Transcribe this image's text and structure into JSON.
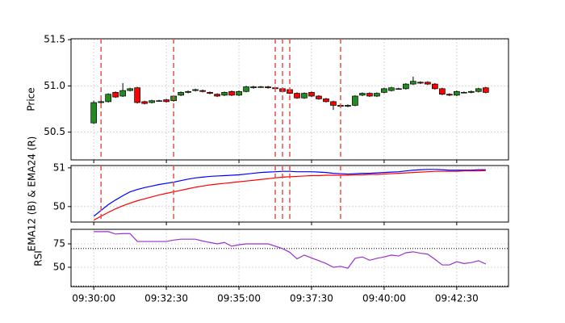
{
  "chart_data": [
    {
      "type": "candlestick",
      "ylabel": "Price",
      "grid": true,
      "up_color": "#228b22",
      "down_color": "#ff0000",
      "signal_color": "#e8504a",
      "xlim": [
        "09:29:13",
        "09:44:17"
      ],
      "ylim": [
        50.2,
        51.51
      ],
      "yticks": [
        50.5,
        {
          "value": 51,
          "label": "51.0"
        },
        51.5
      ],
      "signals": [
        "09:30:15",
        "09:32:45",
        "09:36:15",
        "09:36:30",
        "09:36:45",
        "09:38:30"
      ],
      "x": [
        "09:30:00",
        "09:30:15",
        "09:30:30",
        "09:30:45",
        "09:31:00",
        "09:31:15",
        "09:31:30",
        "09:31:45",
        "09:32:00",
        "09:32:15",
        "09:32:30",
        "09:32:45",
        "09:33:00",
        "09:33:15",
        "09:33:30",
        "09:33:45",
        "09:34:00",
        "09:34:15",
        "09:34:30",
        "09:34:45",
        "09:35:00",
        "09:35:15",
        "09:35:30",
        "09:35:45",
        "09:36:00",
        "09:36:15",
        "09:36:30",
        "09:36:45",
        "09:37:00",
        "09:37:15",
        "09:37:30",
        "09:37:45",
        "09:38:00",
        "09:38:15",
        "09:38:30",
        "09:38:45",
        "09:39:00",
        "09:39:15",
        "09:39:30",
        "09:39:45",
        "09:40:00",
        "09:40:15",
        "09:40:30",
        "09:40:45",
        "09:41:00",
        "09:41:15",
        "09:41:30",
        "09:41:45",
        "09:42:00",
        "09:42:15",
        "09:42:30",
        "09:42:45",
        "09:43:00",
        "09:43:15",
        "09:43:30"
      ],
      "open": [
        50.6,
        50.82,
        50.83,
        50.93,
        50.89,
        50.95,
        50.98,
        50.83,
        50.82,
        50.84,
        50.85,
        50.84,
        50.9,
        50.93,
        50.95,
        50.95,
        50.93,
        50.91,
        50.9,
        50.94,
        50.9,
        50.94,
        50.98,
        50.99,
        50.99,
        50.98,
        50.97,
        50.96,
        50.92,
        50.87,
        50.93,
        50.89,
        50.86,
        50.83,
        50.79,
        50.78,
        50.79,
        50.9,
        50.92,
        50.89,
        50.93,
        50.95,
        50.97,
        50.97,
        51.02,
        51.04,
        51.04,
        51.02,
        50.97,
        50.91,
        50.9,
        50.93,
        50.93,
        50.94,
        50.98
      ],
      "high": [
        50.84,
        50.85,
        50.92,
        50.94,
        51.03,
        50.98,
        50.99,
        50.84,
        50.85,
        50.85,
        50.86,
        50.9,
        50.94,
        50.95,
        50.97,
        50.96,
        50.94,
        50.92,
        50.94,
        50.95,
        50.95,
        51.0,
        51.0,
        51.0,
        51.0,
        50.99,
        50.98,
        50.97,
        50.93,
        50.93,
        50.94,
        50.9,
        50.87,
        50.84,
        50.8,
        50.8,
        50.9,
        50.93,
        50.93,
        50.93,
        50.98,
        50.99,
        50.98,
        51.03,
        51.1,
        51.05,
        51.05,
        51.03,
        50.98,
        50.92,
        50.95,
        50.94,
        50.95,
        50.98,
        50.99
      ],
      "low": [
        50.59,
        50.81,
        50.82,
        50.87,
        50.88,
        50.94,
        50.81,
        50.8,
        50.81,
        50.83,
        50.82,
        50.83,
        50.89,
        50.92,
        50.94,
        50.93,
        50.91,
        50.88,
        50.89,
        50.89,
        50.89,
        50.93,
        50.97,
        50.98,
        50.97,
        50.96,
        50.93,
        50.91,
        50.86,
        50.86,
        50.88,
        50.85,
        50.82,
        50.74,
        50.77,
        50.77,
        50.78,
        50.89,
        50.88,
        50.88,
        50.92,
        50.94,
        50.96,
        50.96,
        51.01,
        51.02,
        51.01,
        50.96,
        50.9,
        50.89,
        50.89,
        50.92,
        50.92,
        50.93,
        50.92
      ],
      "close": [
        50.82,
        50.83,
        50.91,
        50.88,
        50.95,
        50.97,
        50.82,
        50.81,
        50.84,
        50.84,
        50.83,
        50.89,
        50.93,
        50.94,
        50.96,
        50.94,
        50.92,
        50.89,
        50.93,
        50.9,
        50.94,
        50.99,
        50.99,
        50.99,
        50.98,
        50.97,
        50.94,
        50.92,
        50.87,
        50.92,
        50.89,
        50.86,
        50.83,
        50.79,
        50.78,
        50.79,
        50.89,
        50.92,
        50.89,
        50.92,
        50.97,
        50.98,
        50.97,
        51.02,
        51.05,
        51.03,
        51.02,
        50.97,
        50.91,
        50.9,
        50.94,
        50.93,
        50.94,
        50.97,
        50.93
      ]
    },
    {
      "type": "line",
      "ylabel": "EMA12 (B) & EMA24 (R)",
      "grid": true,
      "xlim": [
        "09:29:13",
        "09:44:17"
      ],
      "ylim": [
        49.6,
        51.06
      ],
      "yticks": [
        50,
        51
      ],
      "x": [
        "09:30:00",
        "09:30:15",
        "09:30:30",
        "09:30:45",
        "09:31:00",
        "09:31:15",
        "09:31:30",
        "09:31:45",
        "09:32:00",
        "09:32:15",
        "09:32:30",
        "09:32:45",
        "09:33:00",
        "09:33:15",
        "09:33:30",
        "09:33:45",
        "09:34:00",
        "09:34:15",
        "09:34:30",
        "09:34:45",
        "09:35:00",
        "09:35:15",
        "09:35:30",
        "09:35:45",
        "09:36:00",
        "09:36:15",
        "09:36:30",
        "09:36:45",
        "09:37:00",
        "09:37:15",
        "09:37:30",
        "09:37:45",
        "09:38:00",
        "09:38:15",
        "09:38:30",
        "09:38:45",
        "09:39:00",
        "09:39:15",
        "09:39:30",
        "09:39:45",
        "09:40:00",
        "09:40:15",
        "09:40:30",
        "09:40:45",
        "09:41:00",
        "09:41:15",
        "09:41:30",
        "09:41:45",
        "09:42:00",
        "09:42:15",
        "09:42:30",
        "09:42:45",
        "09:43:00",
        "09:43:15",
        "09:43:30"
      ],
      "series": [
        {
          "color": "#0000ff",
          "values": [
            49.75,
            49.9,
            50.05,
            50.17,
            50.28,
            50.38,
            50.44,
            50.49,
            50.53,
            50.57,
            50.6,
            50.63,
            50.67,
            50.71,
            50.74,
            50.76,
            50.78,
            50.79,
            50.8,
            50.81,
            50.82,
            50.84,
            50.86,
            50.88,
            50.89,
            50.9,
            50.91,
            50.91,
            50.9,
            50.9,
            50.9,
            50.89,
            50.88,
            50.86,
            50.85,
            50.84,
            50.85,
            50.86,
            50.86,
            50.87,
            50.88,
            50.89,
            50.9,
            50.92,
            50.94,
            50.95,
            50.96,
            50.96,
            50.95,
            50.94,
            50.94,
            50.94,
            50.94,
            50.95,
            50.95
          ]
        },
        {
          "color": "#ff0000",
          "values": [
            49.65,
            49.75,
            49.85,
            49.94,
            50.02,
            50.09,
            50.15,
            50.2,
            50.25,
            50.3,
            50.34,
            50.38,
            50.42,
            50.46,
            50.5,
            50.53,
            50.56,
            50.58,
            50.6,
            50.62,
            50.64,
            50.66,
            50.68,
            50.7,
            50.72,
            50.74,
            50.76,
            50.77,
            50.78,
            50.79,
            50.8,
            50.8,
            50.81,
            50.81,
            50.81,
            50.81,
            50.82,
            50.82,
            50.83,
            50.83,
            50.84,
            50.85,
            50.86,
            50.87,
            50.88,
            50.89,
            50.9,
            50.91,
            50.91,
            50.91,
            50.91,
            50.92,
            50.92,
            50.92,
            50.93
          ]
        }
      ]
    },
    {
      "type": "line",
      "ylabel": "RSI",
      "grid": true,
      "xlim": [
        "09:29:13",
        "09:44:17"
      ],
      "ylim": [
        29.3,
        90.5
      ],
      "yticks": [
        50,
        75
      ],
      "hlines": [
        30,
        70
      ],
      "xticks": [
        "09:30:00",
        "09:32:30",
        "09:35:00",
        "09:37:30",
        "09:40:00",
        "09:42:30"
      ],
      "x": [
        "09:30:00",
        "09:30:15",
        "09:30:30",
        "09:30:45",
        "09:31:00",
        "09:31:15",
        "09:31:30",
        "09:31:45",
        "09:32:00",
        "09:32:15",
        "09:32:30",
        "09:32:45",
        "09:33:00",
        "09:33:15",
        "09:33:30",
        "09:33:45",
        "09:34:00",
        "09:34:15",
        "09:34:30",
        "09:34:45",
        "09:35:00",
        "09:35:15",
        "09:35:30",
        "09:35:45",
        "09:36:00",
        "09:36:15",
        "09:36:30",
        "09:36:45",
        "09:37:00",
        "09:37:15",
        "09:37:30",
        "09:37:45",
        "09:38:00",
        "09:38:15",
        "09:38:30",
        "09:38:45",
        "09:39:00",
        "09:39:15",
        "09:39:30",
        "09:39:45",
        "09:40:00",
        "09:40:15",
        "09:40:30",
        "09:40:45",
        "09:41:00",
        "09:41:15",
        "09:41:30",
        "09:41:45",
        "09:42:00",
        "09:42:15",
        "09:42:30",
        "09:42:45",
        "09:43:00",
        "09:43:15",
        "09:43:30"
      ],
      "series": [
        {
          "color": "#9932cc",
          "values": [
            88,
            88,
            88,
            85.5,
            86,
            86,
            77.5,
            77.5,
            77.5,
            77.5,
            77.5,
            79,
            80,
            80,
            80,
            78,
            76.5,
            75,
            76.5,
            72.5,
            74,
            75,
            75,
            75,
            75,
            72.5,
            70,
            66,
            59,
            63,
            60,
            57,
            54,
            50,
            51,
            49,
            59.5,
            61,
            57.5,
            59.5,
            61,
            63,
            62,
            65.5,
            66.5,
            65,
            64,
            58.5,
            52.5,
            52.5,
            56,
            54,
            55,
            57,
            53.5
          ]
        }
      ]
    }
  ]
}
